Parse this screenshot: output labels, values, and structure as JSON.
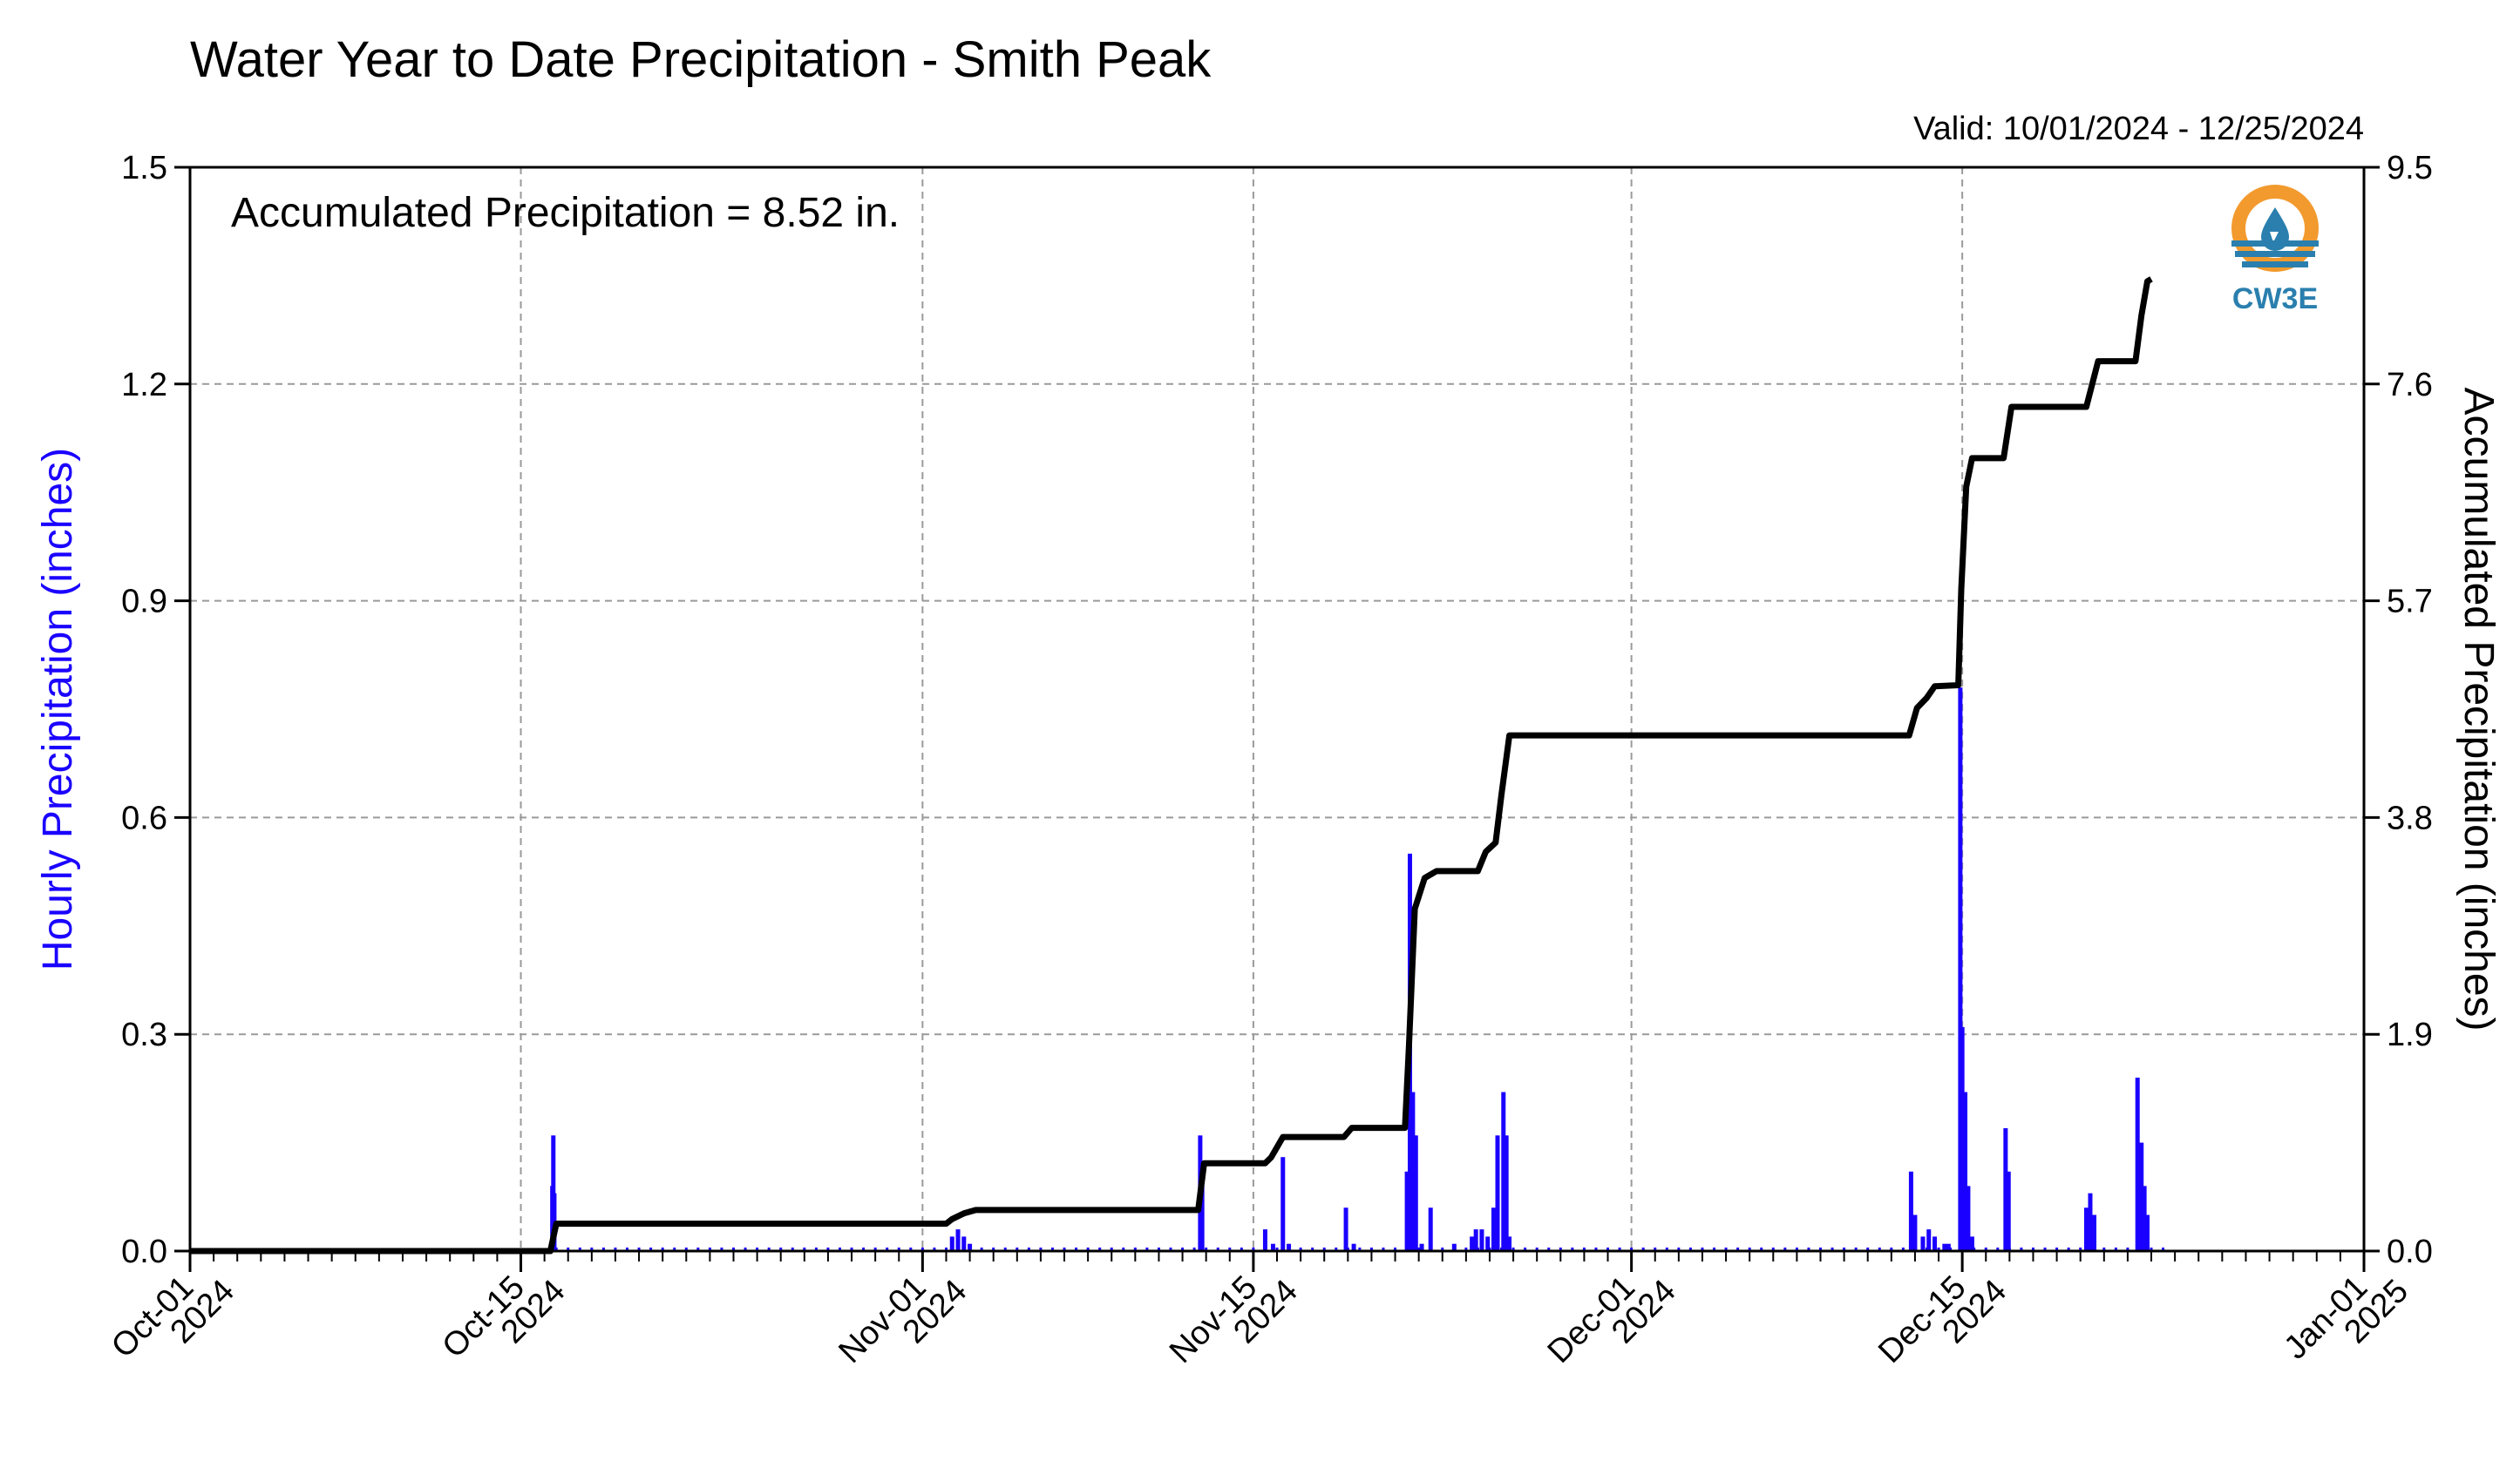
{
  "chart_data": {
    "type": "bar",
    "title": "Water Year to Date Precipitation - Smith Peak",
    "valid_range": "Valid: 10/01/2024 - 12/25/2024",
    "annotation": "Accumulated Precipitation = 8.52 in.",
    "logo": {
      "text": "CW3E",
      "name": "cw3e-logo"
    },
    "x_range": [
      "2024-10-01",
      "2025-01-01"
    ],
    "x_ticks": [
      {
        "date": "2024-10-01",
        "line1": "Oct-01",
        "line2": "2024"
      },
      {
        "date": "2024-10-15",
        "line1": "Oct-15",
        "line2": "2024"
      },
      {
        "date": "2024-11-01",
        "line1": "Nov-01",
        "line2": "2024"
      },
      {
        "date": "2024-11-15",
        "line1": "Nov-15",
        "line2": "2024"
      },
      {
        "date": "2024-12-01",
        "line1": "Dec-01",
        "line2": "2024"
      },
      {
        "date": "2024-12-15",
        "line1": "Dec-15",
        "line2": "2024"
      },
      {
        "date": "2025-01-01",
        "line1": "Jan-01",
        "line2": "2025"
      }
    ],
    "left_axis": {
      "label": "Hourly Precipitation (inches)",
      "ylim": [
        0,
        1.5
      ],
      "ticks": [
        "0.0",
        "0.3",
        "0.6",
        "0.9",
        "1.2",
        "1.5"
      ],
      "color": "#1a00ff"
    },
    "right_axis": {
      "label": "Accumulated Precipitation (inches)",
      "ylim": [
        0,
        9.5
      ],
      "ticks": [
        "0.0",
        "1.9",
        "3.8",
        "5.7",
        "7.6",
        "9.5"
      ],
      "color": "#000000"
    },
    "grid": true,
    "hourly_series": {
      "name": "Hourly Precipitation",
      "color": "#1a00ff",
      "points": [
        [
          "2024-10-16T08:00",
          0.09
        ],
        [
          "2024-10-16T09:00",
          0.16
        ],
        [
          "2024-10-16T10:00",
          0.08
        ],
        [
          "2024-11-02T06:00",
          0.02
        ],
        [
          "2024-11-02T12:00",
          0.03
        ],
        [
          "2024-11-02T18:00",
          0.02
        ],
        [
          "2024-11-03T00:00",
          0.01
        ],
        [
          "2024-11-12T18:00",
          0.16
        ],
        [
          "2024-11-12T20:00",
          0.09
        ],
        [
          "2024-11-15T12:00",
          0.03
        ],
        [
          "2024-11-15T20:00",
          0.01
        ],
        [
          "2024-11-16T06:00",
          0.13
        ],
        [
          "2024-11-16T12:00",
          0.01
        ],
        [
          "2024-11-18T22:00",
          0.06
        ],
        [
          "2024-11-19T06:00",
          0.01
        ],
        [
          "2024-11-21T12:00",
          0.11
        ],
        [
          "2024-11-21T15:00",
          0.55
        ],
        [
          "2024-11-21T18:00",
          0.22
        ],
        [
          "2024-11-21T21:00",
          0.16
        ],
        [
          "2024-11-22T03:00",
          0.01
        ],
        [
          "2024-11-22T12:00",
          0.06
        ],
        [
          "2024-11-23T12:00",
          0.01
        ],
        [
          "2024-11-24T06:00",
          0.02
        ],
        [
          "2024-11-24T10:00",
          0.03
        ],
        [
          "2024-11-24T16:00",
          0.03
        ],
        [
          "2024-11-24T22:00",
          0.02
        ],
        [
          "2024-11-25T04:00",
          0.06
        ],
        [
          "2024-11-25T08:00",
          0.16
        ],
        [
          "2024-11-25T14:00",
          0.22
        ],
        [
          "2024-11-25T17:00",
          0.16
        ],
        [
          "2024-11-25T20:00",
          0.02
        ],
        [
          "2024-12-12T20:00",
          0.11
        ],
        [
          "2024-12-13T00:00",
          0.05
        ],
        [
          "2024-12-13T08:00",
          0.02
        ],
        [
          "2024-12-13T14:00",
          0.03
        ],
        [
          "2024-12-13T20:00",
          0.02
        ],
        [
          "2024-12-14T06:00",
          0.01
        ],
        [
          "2024-12-14T10:00",
          0.01
        ],
        [
          "2024-12-14T22:00",
          0.78
        ],
        [
          "2024-12-15T00:00",
          0.31
        ],
        [
          "2024-12-15T03:00",
          0.22
        ],
        [
          "2024-12-15T06:00",
          0.09
        ],
        [
          "2024-12-15T10:00",
          0.02
        ],
        [
          "2024-12-16T20:00",
          0.17
        ],
        [
          "2024-12-16T23:00",
          0.11
        ],
        [
          "2024-12-20T06:00",
          0.06
        ],
        [
          "2024-12-20T10:00",
          0.08
        ],
        [
          "2024-12-20T14:00",
          0.05
        ],
        [
          "2024-12-22T10:00",
          0.24
        ],
        [
          "2024-12-22T14:00",
          0.15
        ],
        [
          "2024-12-22T17:00",
          0.09
        ],
        [
          "2024-12-22T20:00",
          0.05
        ]
      ]
    },
    "accumulated_series": {
      "name": "Accumulated Precipitation",
      "color": "#000000",
      "points": [
        [
          "2024-10-01T00:00",
          0.0
        ],
        [
          "2024-10-16T06:00",
          0.0
        ],
        [
          "2024-10-16T12:00",
          0.24
        ],
        [
          "2024-11-02T00:00",
          0.24
        ],
        [
          "2024-11-02T06:00",
          0.28
        ],
        [
          "2024-11-02T18:00",
          0.33
        ],
        [
          "2024-11-03T06:00",
          0.36
        ],
        [
          "2024-11-12T16:00",
          0.36
        ],
        [
          "2024-11-12T22:00",
          0.77
        ],
        [
          "2024-11-15T12:00",
          0.77
        ],
        [
          "2024-11-15T18:00",
          0.82
        ],
        [
          "2024-11-16T06:00",
          1.0
        ],
        [
          "2024-11-18T20:00",
          1.0
        ],
        [
          "2024-11-19T04:00",
          1.08
        ],
        [
          "2024-11-21T10:00",
          1.08
        ],
        [
          "2024-11-21T14:00",
          1.8
        ],
        [
          "2024-11-21T20:00",
          3.0
        ],
        [
          "2024-11-22T06:00",
          3.27
        ],
        [
          "2024-11-22T18:00",
          3.33
        ],
        [
          "2024-11-24T12:00",
          3.33
        ],
        [
          "2024-11-24T20:00",
          3.5
        ],
        [
          "2024-11-25T06:00",
          3.58
        ],
        [
          "2024-11-25T12:00",
          4.0
        ],
        [
          "2024-11-25T20:00",
          4.52
        ],
        [
          "2024-12-12T18:00",
          4.52
        ],
        [
          "2024-12-13T02:00",
          4.76
        ],
        [
          "2024-12-13T12:00",
          4.85
        ],
        [
          "2024-12-13T20:00",
          4.95
        ],
        [
          "2024-12-14T20:00",
          4.96
        ],
        [
          "2024-12-14T23:00",
          5.8
        ],
        [
          "2024-12-15T04:00",
          6.7
        ],
        [
          "2024-12-15T10:00",
          6.95
        ],
        [
          "2024-12-16T18:00",
          6.95
        ],
        [
          "2024-12-17T02:00",
          7.4
        ],
        [
          "2024-12-20T06:00",
          7.4
        ],
        [
          "2024-12-20T18:00",
          7.8
        ],
        [
          "2024-12-22T08:00",
          7.8
        ],
        [
          "2024-12-22T14:00",
          8.2
        ],
        [
          "2024-12-22T20:00",
          8.5
        ],
        [
          "2024-12-23T00:00",
          8.52
        ]
      ]
    }
  }
}
